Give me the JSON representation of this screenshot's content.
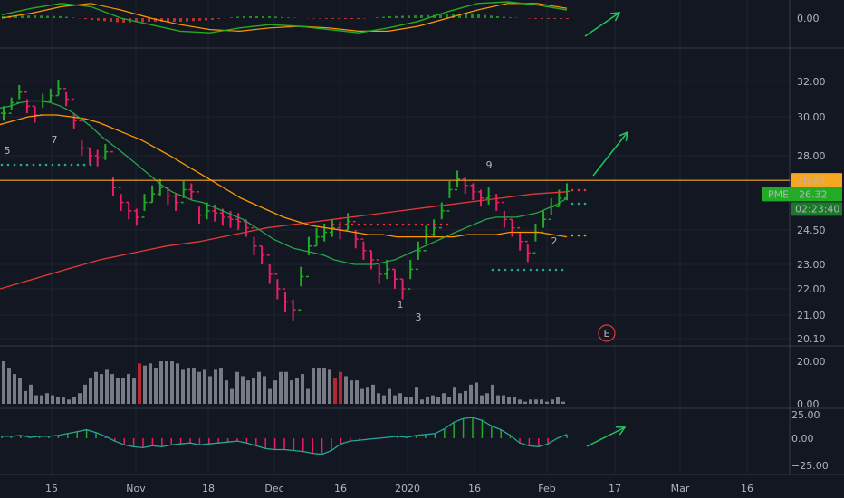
{
  "colors": {
    "background": "#131722",
    "grid": "#1f2330",
    "separator": "#363a45",
    "up": "#26a69a",
    "up_bar": "#22ab24",
    "down_bar": "#e91e63",
    "seq_green": "#26a63a",
    "seq_red": "#e53935",
    "volume": "#787b86",
    "volume_hi": "#b22833",
    "sma_short": "#26a647",
    "sma_mid": "#ff9800",
    "sma_long": "#e53935",
    "osc_line": "#26a69a",
    "resistance": "#f5a623",
    "arrow": "#22c55e",
    "earnings": "#e53935"
  },
  "chart_data": [
    {
      "type": "line",
      "panel": "oscillator-top",
      "y_ticks": [
        "0.00"
      ],
      "series": [
        {
          "values": [
            0.2,
            0.6,
            0.9,
            0.7,
            0.0,
            -0.4,
            -0.8,
            -0.9,
            -0.6,
            -0.4,
            -0.5,
            -0.7,
            -0.9,
            -0.6,
            -0.2,
            0.4,
            0.9,
            1.0,
            0.8,
            0.5
          ]
        },
        {
          "values": [
            0.0,
            0.3,
            0.7,
            0.9,
            0.5,
            0.0,
            -0.4,
            -0.7,
            -0.8,
            -0.6,
            -0.5,
            -0.6,
            -0.8,
            -0.8,
            -0.5,
            0.0,
            0.5,
            0.9,
            0.9,
            0.6
          ]
        }
      ]
    },
    {
      "type": "bar",
      "panel": "price",
      "y_ticks": [
        "32.00",
        "30.00",
        "28.00",
        "24.50",
        "23.00",
        "22.00",
        "21.00",
        "20.10"
      ],
      "x_ticks": [
        "15",
        "Nov",
        "18",
        "Dec",
        "16",
        "2020",
        "16",
        "Feb",
        "17",
        "Mar",
        "16"
      ],
      "close": [
        30.2,
        30.8,
        31.4,
        30.6,
        30.1,
        30.9,
        31.2,
        31.6,
        31.0,
        29.8,
        28.4,
        28.0,
        27.9,
        28.2,
        26.5,
        25.8,
        25.4,
        25.1,
        25.8,
        26.2,
        26.5,
        26.1,
        25.8,
        26.4,
        26.3,
        25.2,
        25.4,
        25.3,
        25.1,
        25.0,
        24.9,
        24.6,
        23.8,
        23.4,
        22.6,
        22.0,
        21.5,
        21.2,
        22.5,
        23.8,
        24.2,
        24.4,
        24.6,
        24.5,
        24.9,
        24.1,
        23.6,
        23.2,
        22.6,
        22.8,
        22.4,
        22.0,
        22.8,
        23.6,
        24.3,
        24.6,
        25.4,
        26.4,
        26.9,
        26.6,
        26.3,
        26.0,
        26.1,
        25.8,
        25.0,
        24.6,
        24.0,
        23.5,
        24.4,
        25.0,
        25.6,
        26.0,
        26.32
      ],
      "high": [
        30.6,
        31.1,
        31.8,
        31.0,
        30.6,
        31.3,
        31.6,
        32.1,
        31.4,
        30.2,
        28.8,
        28.4,
        28.3,
        28.6,
        27.0,
        26.2,
        25.8,
        25.5,
        26.2,
        26.6,
        26.9,
        26.5,
        26.2,
        26.8,
        26.7,
        25.6,
        25.8,
        25.7,
        25.5,
        25.4,
        25.3,
        25.0,
        24.2,
        23.8,
        23.0,
        22.4,
        21.9,
        21.6,
        22.9,
        24.2,
        24.6,
        24.8,
        25.0,
        24.9,
        25.3,
        24.5,
        24.0,
        23.6,
        23.0,
        23.2,
        22.8,
        22.4,
        23.2,
        24.0,
        24.7,
        25.0,
        25.8,
        26.8,
        27.3,
        27.0,
        26.7,
        26.4,
        26.5,
        26.2,
        25.4,
        25.0,
        24.4,
        23.9,
        24.8,
        25.4,
        26.0,
        26.4,
        26.7
      ],
      "low": [
        29.8,
        30.4,
        31.0,
        30.2,
        29.7,
        30.5,
        30.8,
        31.2,
        30.6,
        29.4,
        28.0,
        27.6,
        27.5,
        27.8,
        26.1,
        25.4,
        25.0,
        24.7,
        25.4,
        25.8,
        26.1,
        25.7,
        25.4,
        26.0,
        25.9,
        24.8,
        25.0,
        24.9,
        24.7,
        24.6,
        24.5,
        24.2,
        23.4,
        23.0,
        22.2,
        21.6,
        21.1,
        20.8,
        22.1,
        23.4,
        23.8,
        24.0,
        24.2,
        24.1,
        24.5,
        23.7,
        23.2,
        22.8,
        22.2,
        22.4,
        22.0,
        21.6,
        22.4,
        23.2,
        23.9,
        24.2,
        25.0,
        26.0,
        26.5,
        26.2,
        25.9,
        25.6,
        25.7,
        25.4,
        24.6,
        24.2,
        23.6,
        23.1,
        24.0,
        24.6,
        25.2,
        25.6,
        25.9
      ],
      "sma_short": [
        30.5,
        30.6,
        30.8,
        30.9,
        30.9,
        30.8,
        30.6,
        30.3,
        29.9,
        29.5,
        29.0,
        28.6,
        28.2,
        27.8,
        27.4,
        27.0,
        26.6,
        26.3,
        26.1,
        25.9,
        25.8,
        25.6,
        25.4,
        25.2,
        25.0,
        24.7,
        24.4,
        24.1,
        23.9,
        23.7,
        23.6,
        23.5,
        23.4,
        23.2,
        23.1,
        23.0,
        23.0,
        23.0,
        23.1,
        23.2,
        23.4,
        23.6,
        23.8,
        24.0,
        24.2,
        24.4,
        24.6,
        24.8,
        25.0,
        25.1,
        25.1,
        25.1,
        25.2,
        25.3,
        25.5,
        25.7,
        26.0
      ],
      "sma_mid": [
        29.6,
        29.8,
        30.0,
        30.1,
        30.1,
        30.0,
        29.9,
        29.7,
        29.4,
        29.1,
        28.8,
        28.4,
        28.0,
        27.6,
        27.2,
        26.8,
        26.4,
        26.0,
        25.7,
        25.4,
        25.1,
        24.9,
        24.7,
        24.6,
        24.5,
        24.4,
        24.3,
        24.3,
        24.2,
        24.2,
        24.2,
        24.2,
        24.2,
        24.3,
        24.3,
        24.3,
        24.4,
        24.4,
        24.4,
        24.3,
        24.2
      ],
      "sma_long": [
        22.0,
        22.4,
        22.8,
        23.2,
        23.5,
        23.8,
        24.0,
        24.3,
        24.6,
        24.8,
        25.0,
        25.2,
        25.4,
        25.6,
        25.8,
        26.0,
        26.2,
        26.3
      ],
      "resistance": 26.84,
      "last_price": 26.32,
      "markers": [
        {
          "label": "5"
        },
        {
          "label": "7"
        },
        {
          "label": "9"
        },
        {
          "label": "1"
        },
        {
          "label": "2"
        },
        {
          "label": "3"
        }
      ]
    },
    {
      "type": "bar",
      "panel": "volume",
      "y_ticks": [
        "20.00",
        "0.00"
      ],
      "values": [
        20,
        17,
        14,
        12,
        6,
        9,
        4,
        4,
        5,
        4,
        3,
        3,
        2,
        3,
        5,
        9,
        12,
        15,
        14,
        16,
        14,
        12,
        12,
        14,
        12,
        19,
        18,
        19,
        17,
        20,
        20,
        20,
        19,
        16,
        17,
        17,
        15,
        16,
        13,
        16,
        17,
        11,
        7,
        15,
        13,
        11,
        12,
        15,
        13,
        7,
        11,
        15,
        15,
        11,
        12,
        14,
        7,
        17,
        17,
        17,
        16,
        12,
        15,
        13,
        11,
        11,
        7,
        8,
        9,
        5,
        4,
        7,
        4,
        5,
        3,
        3,
        8,
        2,
        3,
        4,
        3,
        5,
        3,
        8,
        5,
        6,
        9,
        10,
        4,
        5,
        9,
        4,
        4,
        3,
        3,
        2,
        1,
        2,
        2,
        2,
        1,
        2,
        3,
        1
      ]
    },
    {
      "type": "bar",
      "panel": "oscillator-bottom",
      "y_ticks": [
        "25.00",
        "0.00",
        "−25.00"
      ],
      "values": [
        2,
        2,
        3,
        1,
        2,
        2,
        3,
        5,
        7,
        9,
        6,
        2,
        -3,
        -7,
        -9,
        -10,
        -8,
        -9,
        -7,
        -6,
        -5,
        -7,
        -6,
        -5,
        -4,
        -3,
        -5,
        -8,
        -11,
        -12,
        -12,
        -13,
        -14,
        -16,
        -17,
        -13,
        -6,
        -3,
        -2,
        -1,
        0,
        1,
        2,
        1,
        3,
        4,
        5,
        10,
        17,
        21,
        22,
        19,
        13,
        9,
        3,
        -5,
        -8,
        -9,
        -6,
        0,
        4
      ]
    }
  ],
  "labels": {
    "price_tag_resistance": "26.84",
    "price_tag_symbol": "PME",
    "price_tag_last": "26.32",
    "countdown": "02:23:40",
    "earnings_badge": "E"
  }
}
